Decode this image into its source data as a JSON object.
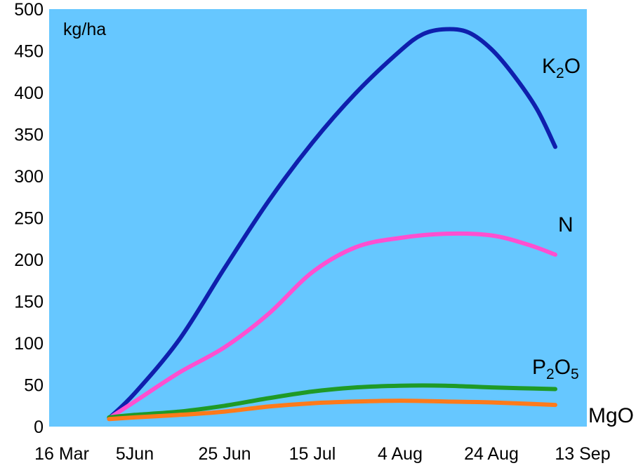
{
  "chart_data": {
    "type": "line",
    "title": "",
    "ylabel": "kg/ha",
    "xlabel": "",
    "ylim": [
      0,
      500
    ],
    "y_ticks": [
      0,
      50,
      100,
      150,
      200,
      250,
      300,
      350,
      400,
      450,
      500
    ],
    "x_ticks": [
      "16 Mar",
      "5Jun",
      "25 Jun",
      "15 Jul",
      "4 Aug",
      "24 Aug",
      "13 Sep"
    ],
    "grid": false,
    "background_color": "#66c7ff",
    "series": [
      {
        "name": "K2O",
        "label_main": "K",
        "label_sub": "2",
        "label_tail": "O",
        "color": "#0f1fad",
        "points": [
          [
            0.7,
            10
          ],
          [
            1.0,
            40
          ],
          [
            1.5,
            105
          ],
          [
            2.0,
            190
          ],
          [
            2.5,
            270
          ],
          [
            3.0,
            340
          ],
          [
            3.5,
            400
          ],
          [
            4.0,
            450
          ],
          [
            4.25,
            470
          ],
          [
            4.5,
            476
          ],
          [
            4.75,
            472
          ],
          [
            5.0,
            452
          ],
          [
            5.25,
            420
          ],
          [
            5.5,
            380
          ],
          [
            5.7,
            335
          ]
        ]
      },
      {
        "name": "N",
        "label_main": "N",
        "label_sub": "",
        "label_tail": "",
        "color": "#ff4fd0",
        "points": [
          [
            0.7,
            10
          ],
          [
            1.0,
            30
          ],
          [
            1.5,
            65
          ],
          [
            2.0,
            95
          ],
          [
            2.5,
            135
          ],
          [
            3.0,
            185
          ],
          [
            3.5,
            215
          ],
          [
            4.0,
            226
          ],
          [
            4.5,
            231
          ],
          [
            5.0,
            229
          ],
          [
            5.4,
            218
          ],
          [
            5.7,
            206
          ]
        ]
      },
      {
        "name": "P2O5",
        "label_main": "P",
        "label_sub": "2",
        "label_tail": "O",
        "label_sub2": "5",
        "color": "#1f9a26",
        "points": [
          [
            0.7,
            11
          ],
          [
            1.0,
            14
          ],
          [
            1.5,
            18
          ],
          [
            2.0,
            25
          ],
          [
            2.5,
            34
          ],
          [
            3.0,
            42
          ],
          [
            3.5,
            47
          ],
          [
            4.0,
            49
          ],
          [
            4.5,
            49
          ],
          [
            5.0,
            47
          ],
          [
            5.7,
            45
          ]
        ]
      },
      {
        "name": "MgO",
        "label_main": "MgO",
        "label_sub": "",
        "label_tail": "",
        "color": "#ff7a1a",
        "points": [
          [
            0.7,
            9
          ],
          [
            1.0,
            11
          ],
          [
            1.5,
            14
          ],
          [
            2.0,
            18
          ],
          [
            2.5,
            24
          ],
          [
            3.0,
            28
          ],
          [
            3.5,
            30
          ],
          [
            4.0,
            31
          ],
          [
            4.5,
            30
          ],
          [
            5.0,
            29
          ],
          [
            5.7,
            26
          ]
        ]
      }
    ]
  }
}
